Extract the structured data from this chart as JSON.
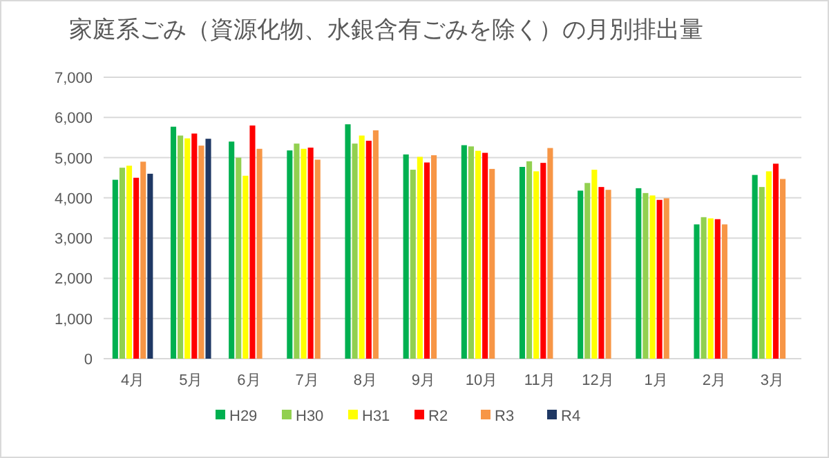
{
  "chart_data": {
    "type": "bar",
    "title": "家庭系ごみ（資源化物、水銀含有ごみを除く）の月別排出量",
    "categories": [
      "4月",
      "5月",
      "6月",
      "7月",
      "8月",
      "9月",
      "10月",
      "11月",
      "12月",
      "1月",
      "2月",
      "3月"
    ],
    "series": [
      {
        "name": "H29",
        "color": "#00b050",
        "values": [
          4450,
          5770,
          5400,
          5180,
          5830,
          5080,
          5310,
          4770,
          4180,
          4240,
          3340,
          4570
        ]
      },
      {
        "name": "H30",
        "color": "#92d050",
        "values": [
          4750,
          5550,
          5000,
          5350,
          5350,
          4700,
          5280,
          4910,
          4370,
          4120,
          3520,
          4270
        ]
      },
      {
        "name": "H31",
        "color": "#ffff00",
        "values": [
          4800,
          5480,
          4550,
          5220,
          5550,
          5020,
          5170,
          4660,
          4700,
          4060,
          3490,
          4660
        ]
      },
      {
        "name": "R2",
        "color": "#ff0000",
        "values": [
          4500,
          5600,
          5800,
          5250,
          5420,
          4880,
          5120,
          4870,
          4270,
          3950,
          3470,
          4850
        ]
      },
      {
        "name": "R3",
        "color": "#f79646",
        "values": [
          4900,
          5300,
          5220,
          4950,
          5680,
          5060,
          4720,
          5240,
          4200,
          3990,
          3340,
          4470
        ]
      },
      {
        "name": "R4",
        "color": "#1f3864",
        "values": [
          4600,
          5470,
          null,
          null,
          null,
          null,
          null,
          null,
          null,
          null,
          null,
          null
        ]
      }
    ],
    "ylim": [
      0,
      7000
    ],
    "yticks": [
      {
        "value": 0,
        "label": "0"
      },
      {
        "value": 1000,
        "label": "1,000"
      },
      {
        "value": 2000,
        "label": "2,000"
      },
      {
        "value": 3000,
        "label": "3,000"
      },
      {
        "value": 4000,
        "label": "4,000"
      },
      {
        "value": 5000,
        "label": "5,000"
      },
      {
        "value": 6000,
        "label": "6,000"
      },
      {
        "value": 7000,
        "label": "7,000"
      }
    ],
    "grid": "y",
    "legend": "bottom"
  }
}
